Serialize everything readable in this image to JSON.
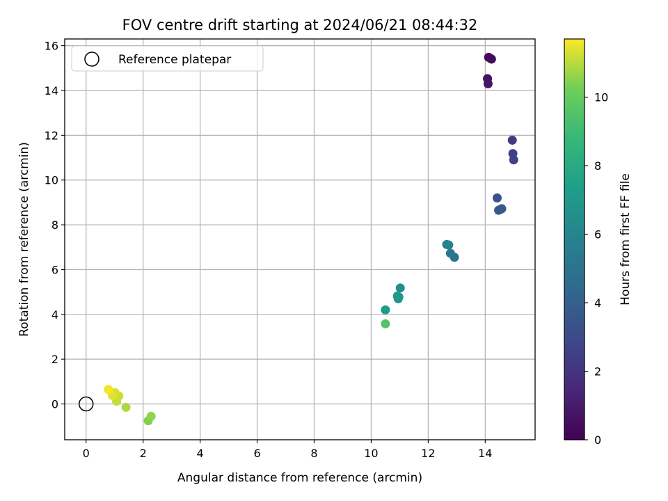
{
  "chart_data": {
    "type": "scatter",
    "title": "FOV centre drift starting at 2024/06/21 08:44:32",
    "xlabel": "Angular distance from reference (arcmin)",
    "ylabel": "Rotation from reference (arcmin)",
    "xlim": [
      -0.75,
      15.75
    ],
    "ylim": [
      -1.6,
      16.3
    ],
    "xticks": [
      0,
      2,
      4,
      6,
      8,
      10,
      12,
      14
    ],
    "yticks": [
      0,
      2,
      4,
      6,
      8,
      10,
      12,
      14,
      16
    ],
    "grid": true,
    "legend": {
      "position": "top-left",
      "entries": [
        {
          "label": "Reference platepar",
          "marker": "open-circle",
          "color": "#000000"
        }
      ]
    },
    "reference_point": {
      "x": 0,
      "y": 0,
      "label": "Reference platepar"
    },
    "colorbar": {
      "label": "Hours from first FF file",
      "colormap": "viridis",
      "range": [
        0,
        11.7
      ],
      "ticks": [
        0,
        2,
        4,
        6,
        8,
        10
      ]
    },
    "points": [
      {
        "x": 14.12,
        "y": 15.48,
        "hours": 0.2
      },
      {
        "x": 14.2,
        "y": 15.42,
        "hours": 0.3
      },
      {
        "x": 14.22,
        "y": 15.4,
        "hours": 0.4
      },
      {
        "x": 14.08,
        "y": 14.53,
        "hours": 0.6
      },
      {
        "x": 14.1,
        "y": 14.3,
        "hours": 0.7
      },
      {
        "x": 14.95,
        "y": 11.78,
        "hours": 2.3
      },
      {
        "x": 14.97,
        "y": 11.18,
        "hours": 2.5
      },
      {
        "x": 15.0,
        "y": 10.9,
        "hours": 2.7
      },
      {
        "x": 14.42,
        "y": 9.2,
        "hours": 3.3
      },
      {
        "x": 14.47,
        "y": 8.65,
        "hours": 3.5
      },
      {
        "x": 14.52,
        "y": 8.68,
        "hours": 3.6
      },
      {
        "x": 14.58,
        "y": 8.72,
        "hours": 3.7
      },
      {
        "x": 12.92,
        "y": 6.55,
        "hours": 4.9
      },
      {
        "x": 12.78,
        "y": 6.73,
        "hours": 5.3
      },
      {
        "x": 12.65,
        "y": 7.12,
        "hours": 5.8
      },
      {
        "x": 12.72,
        "y": 7.1,
        "hours": 5.9
      },
      {
        "x": 11.02,
        "y": 5.18,
        "hours": 6.5
      },
      {
        "x": 10.95,
        "y": 4.7,
        "hours": 6.6
      },
      {
        "x": 10.92,
        "y": 4.82,
        "hours": 6.8
      },
      {
        "x": 10.97,
        "y": 4.78,
        "hours": 6.9
      },
      {
        "x": 10.5,
        "y": 4.2,
        "hours": 7.2
      },
      {
        "x": 10.5,
        "y": 3.58,
        "hours": 9.6
      },
      {
        "x": 2.18,
        "y": -0.75,
        "hours": 10.4
      },
      {
        "x": 2.28,
        "y": -0.55,
        "hours": 10.6
      },
      {
        "x": 1.4,
        "y": -0.15,
        "hours": 10.9
      },
      {
        "x": 1.07,
        "y": 0.12,
        "hours": 11.1
      },
      {
        "x": 1.15,
        "y": 0.35,
        "hours": 11.2
      },
      {
        "x": 1.02,
        "y": 0.5,
        "hours": 11.3
      },
      {
        "x": 0.92,
        "y": 0.38,
        "hours": 11.4
      },
      {
        "x": 0.78,
        "y": 0.65,
        "hours": 11.6
      }
    ]
  }
}
